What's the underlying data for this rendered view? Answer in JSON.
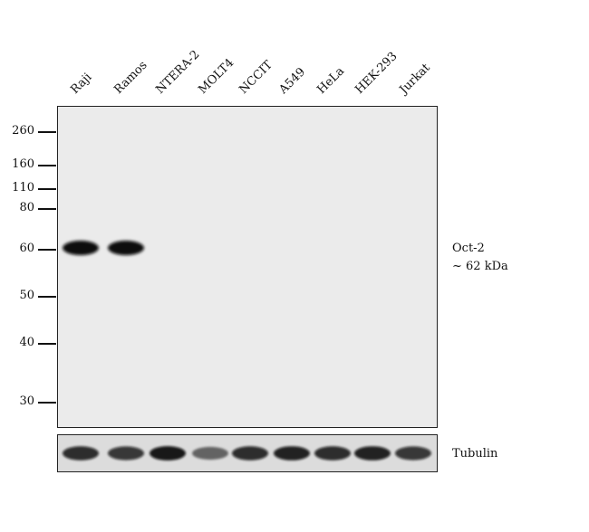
{
  "lanes": [
    "Raji",
    "Ramos",
    "NTERA-2",
    "MOLT4",
    "NCCIT",
    "A549",
    "HeLa",
    "HEK-293",
    "Jurkat"
  ],
  "markers": [
    "260",
    "160",
    "110",
    "80",
    "60",
    "50",
    "40",
    "30"
  ],
  "target": {
    "name": "Oct-2",
    "size": "~ 62 kDa"
  },
  "loading_control": "Tubulin",
  "oct2_band_intensity": [
    1,
    1,
    0,
    0,
    0,
    0,
    0,
    0,
    0
  ],
  "tubulin_band_intensity": [
    0.85,
    0.8,
    0.95,
    0.55,
    0.85,
    0.9,
    0.85,
    0.9,
    0.8
  ]
}
